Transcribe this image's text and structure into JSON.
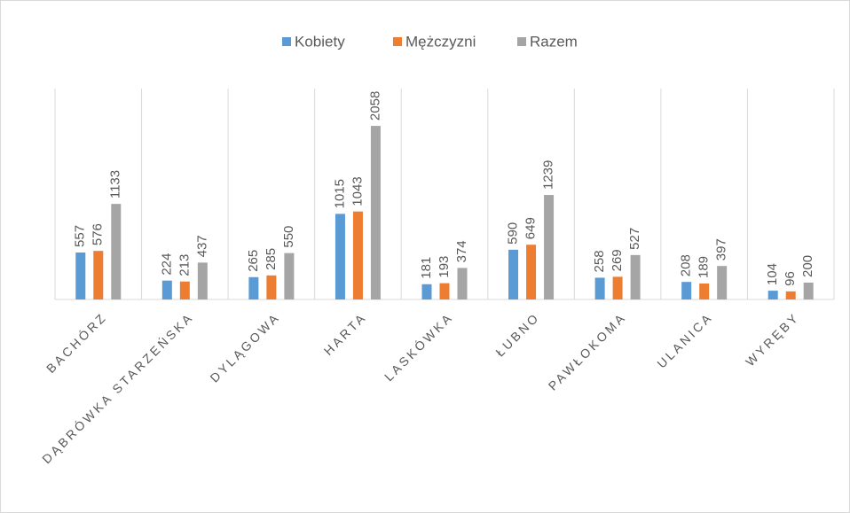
{
  "chart_data": {
    "type": "bar",
    "categories": [
      "BACHÓRZ",
      "DĄBRÓWKA STARZEŃSKA",
      "DYLĄGOWA",
      "HARTA",
      "LASKÓWKA",
      "ŁUBNO",
      "PAWŁOKOMA",
      "ULANICA",
      "WYRĘBY"
    ],
    "series": [
      {
        "name": "Kobiety",
        "color": "#5b9bd5",
        "values": [
          557,
          224,
          265,
          1015,
          181,
          590,
          258,
          208,
          104
        ]
      },
      {
        "name": "Mężczyzni",
        "color": "#ed7d31",
        "values": [
          576,
          213,
          285,
          1043,
          193,
          649,
          269,
          189,
          96
        ]
      },
      {
        "name": "Razem",
        "color": "#a5a5a5",
        "values": [
          1133,
          437,
          550,
          2058,
          374,
          1239,
          527,
          397,
          200
        ]
      }
    ],
    "ylim": [
      0,
      2500
    ],
    "legend": "top",
    "grid": true
  }
}
